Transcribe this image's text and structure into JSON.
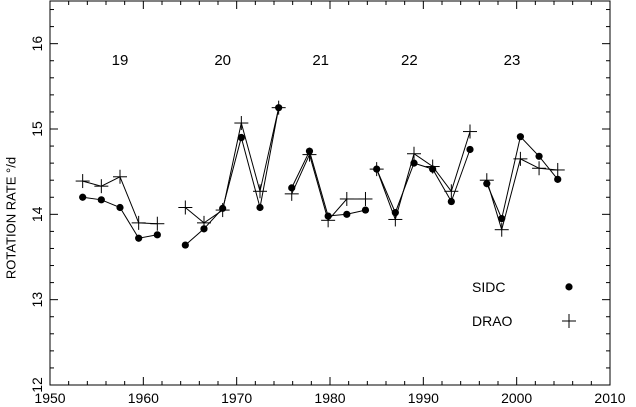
{
  "chart_data": {
    "type": "line",
    "ylabel": "ROTATION RATE °/d",
    "xlabel": "",
    "xlim": [
      1950,
      2010
    ],
    "ylim": [
      12,
      16.5
    ],
    "x_ticks": [
      1950,
      1960,
      1970,
      1980,
      1990,
      2000,
      2010
    ],
    "y_ticks": [
      12,
      13,
      14,
      15,
      16
    ],
    "cycle_labels": [
      {
        "text": "19",
        "x": 1957.5,
        "y": 15.75
      },
      {
        "text": "20",
        "x": 1968.5,
        "y": 15.75
      },
      {
        "text": "21",
        "x": 1979.0,
        "y": 15.75
      },
      {
        "text": "22",
        "x": 1988.5,
        "y": 15.75
      },
      {
        "text": "23",
        "x": 1999.5,
        "y": 15.75
      }
    ],
    "series": [
      {
        "name": "SIDC",
        "marker": "dot",
        "segments": [
          [
            [
              1953.5,
              14.2
            ],
            [
              1955.5,
              14.17
            ],
            [
              1957.5,
              14.08
            ],
            [
              1959.5,
              13.72
            ],
            [
              1961.5,
              13.76
            ]
          ],
          [
            [
              1964.5,
              13.64
            ],
            [
              1966.5,
              13.83
            ],
            [
              1968.5,
              14.07
            ],
            [
              1970.5,
              14.9
            ],
            [
              1972.5,
              14.08
            ],
            [
              1974.5,
              15.25
            ]
          ],
          [
            [
              1975.9,
              14.31
            ],
            [
              1977.8,
              14.74
            ],
            [
              1979.8,
              13.98
            ],
            [
              1981.8,
              14.0
            ],
            [
              1983.8,
              14.05
            ]
          ],
          [
            [
              1985.0,
              14.53
            ],
            [
              1987.0,
              14.02
            ],
            [
              1989.0,
              14.6
            ],
            [
              1991.0,
              14.53
            ],
            [
              1993.0,
              14.15
            ],
            [
              1995.0,
              14.76
            ]
          ],
          [
            [
              1996.8,
              14.36
            ],
            [
              1998.4,
              13.95
            ],
            [
              2000.4,
              14.91
            ],
            [
              2002.4,
              14.68
            ],
            [
              2004.4,
              14.41
            ]
          ]
        ]
      },
      {
        "name": "DRAO",
        "marker": "plus",
        "segments": [
          [
            [
              1953.5,
              14.39
            ],
            [
              1955.5,
              14.33
            ],
            [
              1957.5,
              14.44
            ],
            [
              1959.5,
              13.9
            ],
            [
              1961.5,
              13.89
            ]
          ],
          [
            [
              1964.5,
              14.08
            ],
            [
              1966.5,
              13.9
            ],
            [
              1968.5,
              14.05
            ],
            [
              1970.5,
              15.07
            ],
            [
              1972.5,
              14.27
            ],
            [
              1974.5,
              15.25
            ]
          ],
          [
            [
              1975.9,
              14.24
            ],
            [
              1977.8,
              14.7
            ],
            [
              1979.8,
              13.93
            ],
            [
              1981.8,
              14.18
            ],
            [
              1983.8,
              14.18
            ]
          ],
          [
            [
              1985.0,
              14.53
            ],
            [
              1987.0,
              13.94
            ],
            [
              1989.0,
              14.71
            ],
            [
              1991.0,
              14.56
            ],
            [
              1993.0,
              14.27
            ],
            [
              1995.0,
              14.97
            ]
          ],
          [
            [
              1996.8,
              14.4
            ],
            [
              1998.4,
              13.82
            ],
            [
              2000.4,
              14.65
            ],
            [
              2002.4,
              14.54
            ],
            [
              2004.4,
              14.52
            ]
          ]
        ]
      }
    ],
    "legend": {
      "placement": "bottom-right",
      "entries": [
        {
          "label": "SIDC",
          "marker": "dot"
        },
        {
          "label": "DRAO",
          "marker": "plus"
        }
      ]
    },
    "grid": false
  }
}
